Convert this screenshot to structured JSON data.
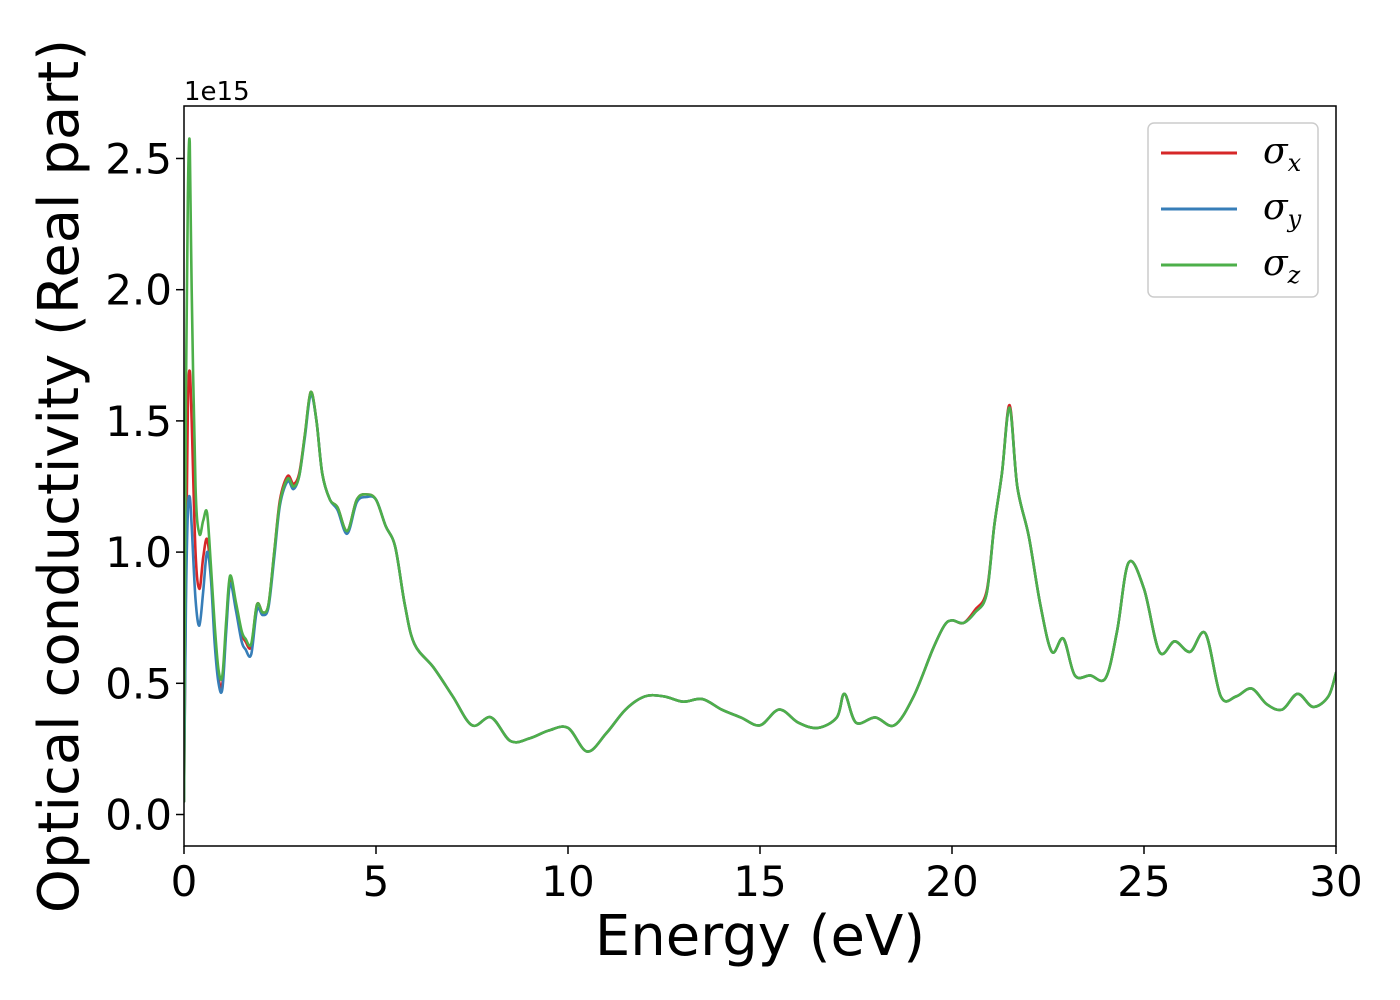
{
  "chart_data": {
    "type": "line",
    "title": "",
    "xlabel": "Energy (eV)",
    "ylabel": "Optical conductivity (Real part)",
    "y_offset_label": "1e15",
    "xlim": [
      0,
      30
    ],
    "ylim": [
      -0.12,
      2.7
    ],
    "xticks": [
      0,
      5,
      10,
      15,
      20,
      25,
      30
    ],
    "xtick_labels": [
      "0",
      "5",
      "10",
      "15",
      "20",
      "25",
      "30"
    ],
    "yticks": [
      0.0,
      0.5,
      1.0,
      1.5,
      2.0,
      2.5
    ],
    "ytick_labels": [
      "0.0",
      "0.5",
      "1.0",
      "1.5",
      "2.0",
      "2.5"
    ],
    "grid": false,
    "legend_position": "top-right",
    "series": [
      {
        "name": "σx",
        "symbol": "σ",
        "subscript": "x",
        "color": "#d62728",
        "x": [
          0,
          0.05,
          0.1,
          0.15,
          0.2,
          0.3,
          0.4,
          0.5,
          0.6,
          0.7,
          0.8,
          0.9,
          1.0,
          1.1,
          1.2,
          1.35,
          1.5,
          1.6,
          1.75,
          1.9,
          2.05,
          2.2,
          2.35,
          2.5,
          2.7,
          2.85,
          3.0,
          3.15,
          3.3,
          3.45,
          3.6,
          3.8,
          4.0,
          4.25,
          4.5,
          4.75,
          5.0,
          5.25,
          5.5,
          5.75,
          6.0,
          6.5,
          7.0,
          7.5,
          8.0,
          8.5,
          9.0,
          9.5,
          10.0,
          10.5,
          11.0,
          11.5,
          12.0,
          12.5,
          13.0,
          13.5,
          14.0,
          14.5,
          15.0,
          15.5,
          16.0,
          16.5,
          17.0,
          17.2,
          17.5,
          18.0,
          18.5,
          19.0,
          19.5,
          19.8,
          20.0,
          20.3,
          20.6,
          20.9,
          21.1,
          21.3,
          21.5,
          21.7,
          22.0,
          22.3,
          22.6,
          22.9,
          23.2,
          23.6,
          24.0,
          24.3,
          24.6,
          25.0,
          25.4,
          25.8,
          26.2,
          26.6,
          27.0,
          27.4,
          27.8,
          28.2,
          28.6,
          29.0,
          29.4,
          29.8,
          30.0
        ],
        "values": [
          0.05,
          0.9,
          1.55,
          1.69,
          1.5,
          1.0,
          0.86,
          0.98,
          1.05,
          0.92,
          0.68,
          0.52,
          0.5,
          0.72,
          0.9,
          0.8,
          0.69,
          0.66,
          0.64,
          0.8,
          0.77,
          0.8,
          1.0,
          1.2,
          1.29,
          1.26,
          1.3,
          1.45,
          1.61,
          1.5,
          1.3,
          1.2,
          1.17,
          1.08,
          1.2,
          1.22,
          1.2,
          1.1,
          1.02,
          0.8,
          0.65,
          0.56,
          0.45,
          0.34,
          0.37,
          0.28,
          0.29,
          0.32,
          0.33,
          0.24,
          0.31,
          0.4,
          0.45,
          0.45,
          0.43,
          0.44,
          0.4,
          0.37,
          0.34,
          0.4,
          0.35,
          0.33,
          0.37,
          0.46,
          0.35,
          0.37,
          0.34,
          0.45,
          0.63,
          0.72,
          0.74,
          0.73,
          0.78,
          0.85,
          1.1,
          1.3,
          1.56,
          1.25,
          1.06,
          0.8,
          0.62,
          0.67,
          0.53,
          0.53,
          0.52,
          0.7,
          0.96,
          0.86,
          0.62,
          0.66,
          0.62,
          0.69,
          0.45,
          0.45,
          0.48,
          0.42,
          0.4,
          0.46,
          0.41,
          0.45,
          0.54
        ]
      },
      {
        "name": "σy",
        "symbol": "σ",
        "subscript": "y",
        "color": "#377eb8",
        "x": [
          0,
          0.05,
          0.1,
          0.15,
          0.2,
          0.3,
          0.4,
          0.5,
          0.6,
          0.7,
          0.8,
          0.9,
          1.0,
          1.1,
          1.2,
          1.35,
          1.5,
          1.6,
          1.75,
          1.9,
          2.05,
          2.2,
          2.35,
          2.5,
          2.7,
          2.85,
          3.0,
          3.15,
          3.3,
          3.45,
          3.6,
          3.8,
          4.0,
          4.25,
          4.5,
          4.75,
          5.0,
          5.25,
          5.5,
          5.75,
          6.0,
          6.5,
          7.0,
          7.5,
          8.0,
          8.5,
          9.0,
          9.5,
          10.0,
          10.5,
          11.0,
          11.5,
          12.0,
          12.5,
          13.0,
          13.5,
          14.0,
          14.5,
          15.0,
          15.5,
          16.0,
          16.5,
          17.0,
          17.2,
          17.5,
          18.0,
          18.5,
          19.0,
          19.5,
          19.8,
          20.0,
          20.3,
          20.6,
          20.9,
          21.1,
          21.3,
          21.5,
          21.7,
          22.0,
          22.3,
          22.6,
          22.9,
          23.2,
          23.6,
          24.0,
          24.3,
          24.6,
          25.0,
          25.4,
          25.8,
          26.2,
          26.6,
          27.0,
          27.4,
          27.8,
          28.2,
          28.6,
          29.0,
          29.4,
          29.8,
          30.0
        ],
        "values": [
          0.05,
          0.8,
          1.15,
          1.21,
          1.1,
          0.82,
          0.72,
          0.85,
          1.0,
          0.9,
          0.65,
          0.5,
          0.48,
          0.7,
          0.88,
          0.78,
          0.66,
          0.63,
          0.61,
          0.78,
          0.76,
          0.79,
          0.98,
          1.18,
          1.27,
          1.24,
          1.29,
          1.44,
          1.6,
          1.5,
          1.3,
          1.2,
          1.16,
          1.07,
          1.19,
          1.21,
          1.2,
          1.1,
          1.02,
          0.8,
          0.65,
          0.56,
          0.45,
          0.34,
          0.37,
          0.28,
          0.29,
          0.32,
          0.33,
          0.24,
          0.31,
          0.4,
          0.45,
          0.45,
          0.43,
          0.44,
          0.4,
          0.37,
          0.34,
          0.4,
          0.35,
          0.33,
          0.37,
          0.46,
          0.35,
          0.37,
          0.34,
          0.45,
          0.63,
          0.72,
          0.74,
          0.73,
          0.77,
          0.84,
          1.1,
          1.3,
          1.55,
          1.25,
          1.06,
          0.8,
          0.62,
          0.67,
          0.53,
          0.53,
          0.52,
          0.7,
          0.96,
          0.86,
          0.62,
          0.66,
          0.62,
          0.69,
          0.45,
          0.45,
          0.48,
          0.42,
          0.4,
          0.46,
          0.41,
          0.45,
          0.54
        ]
      },
      {
        "name": "σz",
        "symbol": "σ",
        "subscript": "z",
        "color": "#4daf4a",
        "x": [
          0,
          0.05,
          0.1,
          0.15,
          0.2,
          0.3,
          0.4,
          0.5,
          0.6,
          0.7,
          0.8,
          0.9,
          1.0,
          1.1,
          1.2,
          1.35,
          1.5,
          1.6,
          1.75,
          1.9,
          2.05,
          2.2,
          2.35,
          2.5,
          2.7,
          2.85,
          3.0,
          3.15,
          3.3,
          3.45,
          3.6,
          3.8,
          4.0,
          4.25,
          4.5,
          4.75,
          5.0,
          5.25,
          5.5,
          5.75,
          6.0,
          6.5,
          7.0,
          7.5,
          8.0,
          8.5,
          9.0,
          9.5,
          10.0,
          10.5,
          11.0,
          11.5,
          12.0,
          12.5,
          13.0,
          13.5,
          14.0,
          14.5,
          15.0,
          15.5,
          16.0,
          16.5,
          17.0,
          17.2,
          17.5,
          18.0,
          18.5,
          19.0,
          19.5,
          19.8,
          20.0,
          20.3,
          20.6,
          20.9,
          21.1,
          21.3,
          21.5,
          21.7,
          22.0,
          22.3,
          22.6,
          22.9,
          23.2,
          23.6,
          24.0,
          24.3,
          24.6,
          25.0,
          25.4,
          25.8,
          26.2,
          26.6,
          27.0,
          27.4,
          27.8,
          28.2,
          28.6,
          29.0,
          29.4,
          29.8,
          30.0
        ],
        "values": [
          0.05,
          1.6,
          2.35,
          2.56,
          2.0,
          1.25,
          1.07,
          1.12,
          1.15,
          0.95,
          0.72,
          0.55,
          0.53,
          0.74,
          0.91,
          0.81,
          0.7,
          0.67,
          0.65,
          0.8,
          0.77,
          0.8,
          1.0,
          1.19,
          1.28,
          1.25,
          1.29,
          1.45,
          1.61,
          1.5,
          1.3,
          1.2,
          1.17,
          1.08,
          1.2,
          1.22,
          1.2,
          1.1,
          1.02,
          0.8,
          0.65,
          0.56,
          0.45,
          0.34,
          0.37,
          0.28,
          0.29,
          0.32,
          0.33,
          0.24,
          0.31,
          0.4,
          0.45,
          0.45,
          0.43,
          0.44,
          0.4,
          0.37,
          0.34,
          0.4,
          0.35,
          0.33,
          0.37,
          0.46,
          0.35,
          0.37,
          0.34,
          0.45,
          0.63,
          0.72,
          0.74,
          0.73,
          0.77,
          0.84,
          1.1,
          1.3,
          1.55,
          1.25,
          1.06,
          0.8,
          0.62,
          0.67,
          0.53,
          0.53,
          0.52,
          0.7,
          0.96,
          0.86,
          0.62,
          0.66,
          0.62,
          0.69,
          0.45,
          0.45,
          0.48,
          0.42,
          0.4,
          0.46,
          0.41,
          0.45,
          0.54
        ]
      }
    ]
  }
}
